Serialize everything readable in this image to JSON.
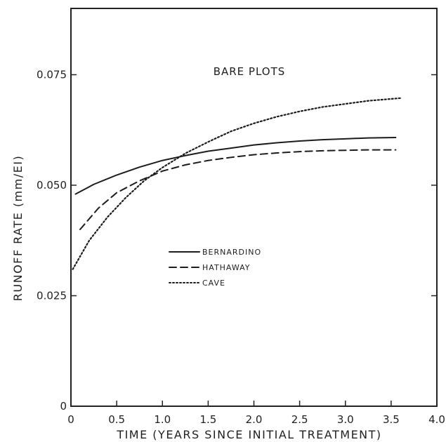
{
  "chart_data": {
    "type": "line",
    "title": "BARE PLOTS",
    "xlabel": "TIME (YEARS SINCE INITIAL TREATMENT)",
    "ylabel": "RUNOFF RATE (mm/EI)",
    "xlim": [
      0,
      4.0
    ],
    "ylim": [
      0,
      0.09
    ],
    "x_ticks": [
      0,
      0.5,
      1.0,
      1.5,
      2.0,
      2.5,
      3.0,
      3.5,
      4.0
    ],
    "x_tick_labels": [
      "0",
      "0.5",
      "1.0",
      "1.5",
      "2.0",
      "2.5",
      "3.0",
      "3.5",
      "4.0"
    ],
    "y_ticks": [
      0,
      0.025,
      0.05,
      0.075
    ],
    "y_tick_labels": [
      "0",
      "0.025",
      "0.050",
      "0.075"
    ],
    "grid": false,
    "legend_position": "middle-left",
    "series": [
      {
        "name": "BERNARDINO",
        "style": "solid",
        "x": [
          0.05,
          0.25,
          0.5,
          0.75,
          1.0,
          1.25,
          1.5,
          1.75,
          2.0,
          2.25,
          2.5,
          2.75,
          3.0,
          3.25,
          3.55
        ],
        "y": [
          0.048,
          0.0502,
          0.0523,
          0.0541,
          0.0556,
          0.0567,
          0.0577,
          0.0584,
          0.0591,
          0.0596,
          0.06,
          0.0603,
          0.0605,
          0.0607,
          0.0608
        ]
      },
      {
        "name": "HATHAWAY",
        "style": "dashed",
        "x": [
          0.1,
          0.3,
          0.5,
          0.75,
          1.0,
          1.25,
          1.5,
          1.75,
          2.0,
          2.25,
          2.5,
          2.75,
          3.0,
          3.25,
          3.55
        ],
        "y": [
          0.04,
          0.0448,
          0.0483,
          0.051,
          0.0532,
          0.0546,
          0.0556,
          0.0563,
          0.0569,
          0.0573,
          0.0576,
          0.0578,
          0.0579,
          0.058,
          0.058
        ]
      },
      {
        "name": "CAVE",
        "style": "dotted",
        "x": [
          0.02,
          0.2,
          0.4,
          0.6,
          0.8,
          1.0,
          1.25,
          1.5,
          1.75,
          2.0,
          2.25,
          2.5,
          2.75,
          3.0,
          3.25,
          3.6
        ],
        "y": [
          0.031,
          0.0375,
          0.0428,
          0.0472,
          0.051,
          0.054,
          0.0572,
          0.0598,
          0.0622,
          0.064,
          0.0655,
          0.0667,
          0.0677,
          0.0684,
          0.0691,
          0.0697
        ]
      }
    ]
  }
}
